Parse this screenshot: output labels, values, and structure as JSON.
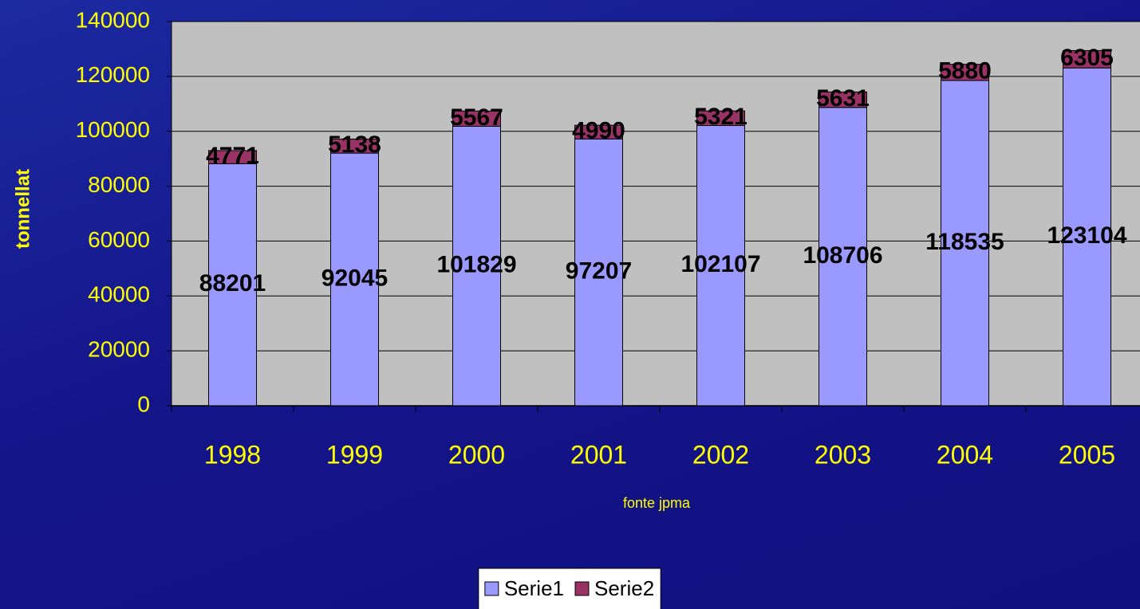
{
  "chart_data": {
    "type": "bar",
    "stacked": true,
    "ylabel": "tonnellat",
    "annotation": "fonte jpma",
    "categories": [
      "1998",
      "1999",
      "2000",
      "2001",
      "2002",
      "2003",
      "2004",
      "2005"
    ],
    "series": [
      {
        "name": "Serie1",
        "color": "#9999ff",
        "values": [
          88201,
          92045,
          101829,
          97207,
          102107,
          108706,
          118535,
          123104
        ]
      },
      {
        "name": "Serie2",
        "color": "#993366",
        "values": [
          4771,
          5138,
          5567,
          4990,
          5321,
          5631,
          5880,
          6305
        ]
      }
    ],
    "ylim": [
      0,
      140000
    ],
    "yticks": [
      0,
      20000,
      40000,
      60000,
      80000,
      100000,
      120000,
      140000
    ],
    "grid": true,
    "legend": "bottom"
  }
}
